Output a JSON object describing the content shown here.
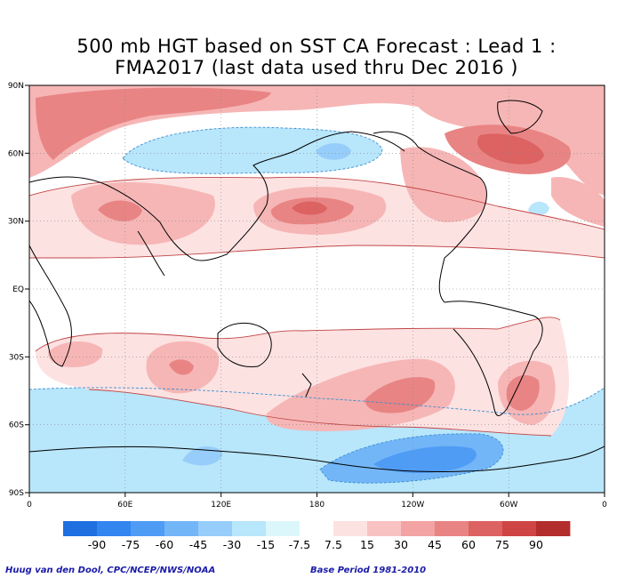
{
  "title": {
    "line1": "500 mb HGT based on SST CA Forecast : Lead 1 :",
    "line2": "FMA2017 (last data used thru Dec 2016 )"
  },
  "credits": {
    "left": "Huug van den Dool, CPC/NCEP/NWS/NOAA",
    "right": "Base Period 1981-2010"
  },
  "axes": {
    "lat_labels": [
      "90N",
      "60N",
      "30N",
      "EQ",
      "30S",
      "60S",
      "90S"
    ],
    "lon_labels": [
      "0",
      "60E",
      "120E",
      "180",
      "120W",
      "60W",
      "0"
    ]
  },
  "colorbar": {
    "labels": [
      "-90",
      "-75",
      "-60",
      "-45",
      "-30",
      "-15",
      "-7.5",
      "7.5",
      "15",
      "30",
      "45",
      "60",
      "75",
      "90"
    ],
    "colors": [
      "#1f6fe0",
      "#3385ef",
      "#4f9cf5",
      "#73b6f8",
      "#97cdfa",
      "#b8e6fb",
      "#dbf7fc",
      "#ffffff",
      "#fde2e2",
      "#f9c2c2",
      "#f3a3a3",
      "#e98484",
      "#dd6262",
      "#cf4545",
      "#b32d2d"
    ]
  },
  "colors": {
    "positive_light": "#fde2e2",
    "positive_mid": "#f6b6b6",
    "positive_strong": "#e98484",
    "positive_core": "#d96565",
    "negative_light": "#c8eef8",
    "negative_mid": "#a6e3f6",
    "negative_strong": "#6fb3ee",
    "negative_core": "#4d8fe6",
    "credit_text": "#1a1aa8"
  }
}
